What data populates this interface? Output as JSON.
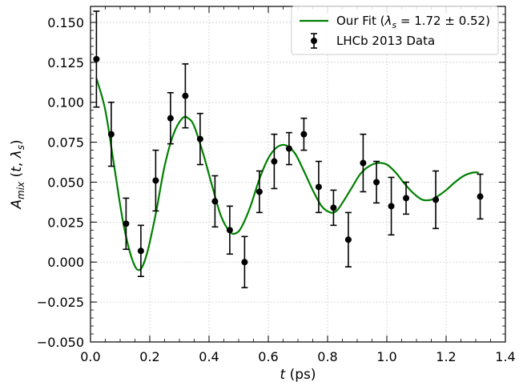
{
  "chart_data": {
    "type": "scatter",
    "xlabel": "t (ps)",
    "ylabel": "A_mix (t, λs)",
    "xlim": [
      0.0,
      1.4
    ],
    "ylim": [
      -0.05,
      0.16
    ],
    "xticks": [
      "0.0",
      "0.2",
      "0.4",
      "0.6",
      "0.8",
      "1.0",
      "1.2",
      "1.4"
    ],
    "yticks": [
      "−0.050",
      "−0.025",
      "0.000",
      "0.025",
      "0.050",
      "0.075",
      "0.100",
      "0.125",
      "0.150"
    ],
    "grid": true,
    "legend_position": "top-right",
    "series": [
      {
        "name": "Our Fit (λs = 1.72 ± 0.52)",
        "type": "line",
        "color": "#008000",
        "x": [
          0.02,
          0.05,
          0.08,
          0.11,
          0.14,
          0.165,
          0.19,
          0.22,
          0.25,
          0.28,
          0.31,
          0.33,
          0.35,
          0.38,
          0.41,
          0.44,
          0.47,
          0.49,
          0.51,
          0.54,
          0.57,
          0.6,
          0.63,
          0.66,
          0.69,
          0.72,
          0.75,
          0.78,
          0.81,
          0.83,
          0.85,
          0.88,
          0.91,
          0.94,
          0.97,
          1.0,
          1.03,
          1.06,
          1.09,
          1.12,
          1.15,
          1.17,
          1.2,
          1.23,
          1.26,
          1.29,
          1.31
        ],
        "y": [
          0.115,
          0.095,
          0.06,
          0.025,
          0.002,
          -0.005,
          0.005,
          0.03,
          0.06,
          0.08,
          0.09,
          0.09,
          0.085,
          0.068,
          0.048,
          0.029,
          0.019,
          0.018,
          0.022,
          0.035,
          0.052,
          0.065,
          0.072,
          0.073,
          0.068,
          0.057,
          0.045,
          0.035,
          0.031,
          0.032,
          0.037,
          0.046,
          0.055,
          0.06,
          0.062,
          0.061,
          0.056,
          0.049,
          0.043,
          0.039,
          0.039,
          0.041,
          0.045,
          0.05,
          0.054,
          0.056,
          0.056
        ]
      },
      {
        "name": "LHCb 2013 Data",
        "type": "errorbar",
        "color": "#000000",
        "x": [
          0.02,
          0.07,
          0.12,
          0.17,
          0.22,
          0.27,
          0.32,
          0.37,
          0.42,
          0.47,
          0.52,
          0.57,
          0.62,
          0.67,
          0.72,
          0.77,
          0.82,
          0.87,
          0.92,
          0.965,
          1.015,
          1.065,
          1.165,
          1.315
        ],
        "y": [
          0.127,
          0.08,
          0.024,
          0.007,
          0.051,
          0.09,
          0.104,
          0.077,
          0.038,
          0.02,
          0.0,
          0.044,
          0.063,
          0.071,
          0.08,
          0.047,
          0.034,
          0.014,
          0.062,
          0.05,
          0.035,
          0.04,
          0.039,
          0.041
        ],
        "err": [
          0.03,
          0.02,
          0.016,
          0.016,
          0.019,
          0.016,
          0.02,
          0.016,
          0.016,
          0.015,
          0.016,
          0.013,
          0.017,
          0.01,
          0.01,
          0.016,
          0.011,
          0.017,
          0.018,
          0.013,
          0.018,
          0.01,
          0.018,
          0.014
        ]
      }
    ]
  }
}
